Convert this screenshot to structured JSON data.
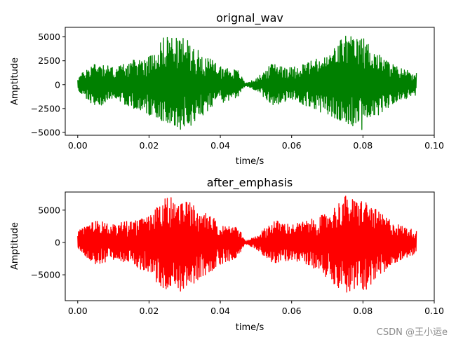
{
  "watermark": "CSDN @王小运e",
  "chart_data": [
    {
      "type": "line",
      "title": "orignal_wav",
      "xlabel": "time/s",
      "ylabel": "Amptitude",
      "xlim": [
        -0.0035,
        0.1
      ],
      "ylim": [
        -5300,
        6000
      ],
      "xticks": [
        0.0,
        0.02,
        0.04,
        0.06,
        0.08,
        0.1
      ],
      "xtick_labels": [
        "0.00",
        "0.02",
        "0.04",
        "0.06",
        "0.08",
        "0.10"
      ],
      "yticks": [
        -5000,
        -2500,
        0,
        2500,
        5000
      ],
      "ytick_labels": [
        "−5000",
        "−2500",
        "0",
        "2500",
        "5000"
      ],
      "color": "#008000",
      "grid": false,
      "series": [
        {
          "x": [
            0.0,
            0.005,
            0.01,
            0.015,
            0.02,
            0.025,
            0.028,
            0.03,
            0.035,
            0.04,
            0.045,
            0.047,
            0.05,
            0.055,
            0.06,
            0.065,
            0.07,
            0.075,
            0.078,
            0.08,
            0.085,
            0.09,
            0.095
          ],
          "upper": [
            800,
            2500,
            1800,
            2500,
            3000,
            5400,
            4800,
            5000,
            3200,
            2000,
            1500,
            150,
            600,
            2400,
            1800,
            2500,
            3000,
            5400,
            4800,
            5000,
            3000,
            1800,
            1300
          ],
          "lower": [
            -600,
            -2500,
            -1500,
            -2400,
            -3200,
            -4000,
            -4600,
            -4800,
            -3300,
            -2000,
            -1300,
            -150,
            -600,
            -2300,
            -1600,
            -2400,
            -3200,
            -4000,
            -4500,
            -4800,
            -3000,
            -1700,
            -1200
          ]
        }
      ]
    },
    {
      "type": "line",
      "title": "after_emphasis",
      "xlabel": "time/s",
      "ylabel": "Amptitude",
      "xlim": [
        -0.0035,
        0.1
      ],
      "ylim": [
        -9000,
        7800
      ],
      "xticks": [
        0.0,
        0.02,
        0.04,
        0.06,
        0.08,
        0.1
      ],
      "xtick_labels": [
        "0.00",
        "0.02",
        "0.04",
        "0.06",
        "0.08",
        "0.10"
      ],
      "yticks": [
        -5000,
        0,
        5000
      ],
      "ytick_labels": [
        "−5000",
        "0",
        "5000"
      ],
      "color": "#ff0000",
      "grid": false,
      "series": [
        {
          "x": [
            0.0,
            0.005,
            0.01,
            0.015,
            0.02,
            0.025,
            0.028,
            0.03,
            0.035,
            0.04,
            0.045,
            0.047,
            0.05,
            0.055,
            0.06,
            0.065,
            0.07,
            0.075,
            0.078,
            0.08,
            0.085,
            0.09,
            0.095
          ],
          "upper": [
            1800,
            3500,
            2800,
            3400,
            4000,
            7300,
            6500,
            6800,
            4800,
            3200,
            2500,
            200,
            1000,
            3500,
            2800,
            3500,
            4500,
            7300,
            6500,
            6800,
            4500,
            2800,
            1800
          ],
          "lower": [
            -1200,
            -3500,
            -2700,
            -3400,
            -5000,
            -7900,
            -7500,
            -7700,
            -5500,
            -3500,
            -2300,
            -200,
            -1000,
            -3400,
            -2700,
            -3500,
            -5500,
            -7900,
            -7500,
            -7700,
            -5300,
            -2800,
            -1800
          ]
        }
      ]
    }
  ]
}
